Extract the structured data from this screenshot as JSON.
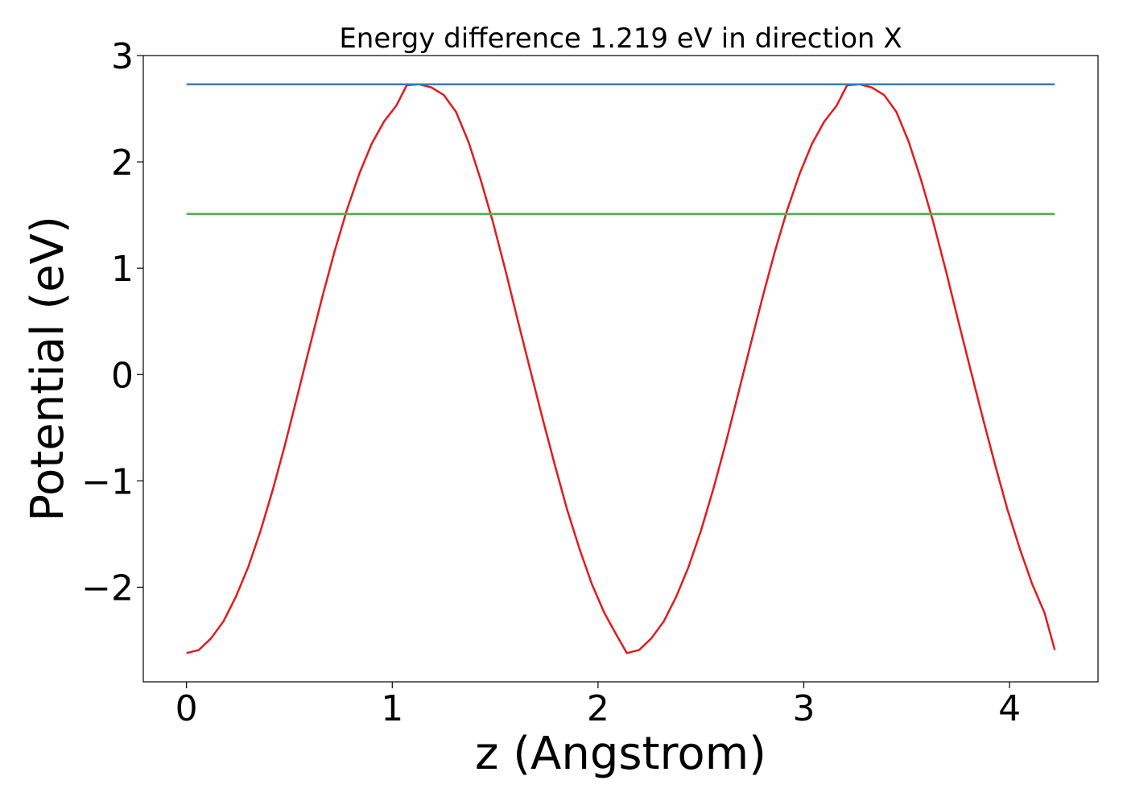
{
  "chart_data": {
    "type": "line",
    "title": "Energy difference 1.219 eV in direction X",
    "xlabel": "z (Angstrom)",
    "ylabel": "Potential (eV)",
    "xlim": [
      -0.21,
      4.43
    ],
    "ylim": [
      -2.89,
      3.0
    ],
    "xticks": [
      0,
      1,
      2,
      3,
      4
    ],
    "xtick_labels": [
      "0",
      "1",
      "2",
      "3",
      "4"
    ],
    "yticks": [
      -2,
      -1,
      0,
      1,
      2,
      3
    ],
    "ytick_labels": [
      "−2",
      "−1",
      "0",
      "1",
      "2",
      "3"
    ],
    "grid": false,
    "legend": "none",
    "colors": {
      "potential": "#e41a1c",
      "max_level": "#377eb8",
      "mean_level": "#4daf4a"
    },
    "series": [
      {
        "key": "potential",
        "x": [
          0.0,
          0.06,
          0.12,
          0.18,
          0.24,
          0.3,
          0.36,
          0.42,
          0.48,
          0.54,
          0.6,
          0.66,
          0.72,
          0.78,
          0.84,
          0.9,
          0.96,
          1.02,
          1.07,
          1.13,
          1.19,
          1.25,
          1.31,
          1.37,
          1.43,
          1.49,
          1.55,
          1.61,
          1.67,
          1.73,
          1.79,
          1.85,
          1.91,
          1.97,
          2.03,
          2.09,
          2.14,
          2.2,
          2.26,
          2.32,
          2.38,
          2.44,
          2.5,
          2.56,
          2.62,
          2.68,
          2.74,
          2.8,
          2.86,
          2.92,
          2.98,
          3.04,
          3.1,
          3.16,
          3.21,
          3.27,
          3.33,
          3.39,
          3.45,
          3.51,
          3.57,
          3.63,
          3.69,
          3.75,
          3.81,
          3.87,
          3.93,
          3.99,
          4.05,
          4.11,
          4.17,
          4.22
        ],
        "y": [
          -2.62,
          -2.59,
          -2.48,
          -2.32,
          -2.09,
          -1.81,
          -1.47,
          -1.08,
          -0.65,
          -0.19,
          0.27,
          0.73,
          1.16,
          1.55,
          1.89,
          2.17,
          2.38,
          2.53,
          2.72,
          2.73,
          2.7,
          2.63,
          2.47,
          2.19,
          1.83,
          1.43,
          0.98,
          0.51,
          0.05,
          -0.41,
          -0.85,
          -1.27,
          -1.64,
          -1.97,
          -2.24,
          -2.45,
          -2.62,
          -2.59,
          -2.48,
          -2.32,
          -2.09,
          -1.81,
          -1.47,
          -1.08,
          -0.65,
          -0.19,
          0.27,
          0.73,
          1.16,
          1.55,
          1.89,
          2.17,
          2.38,
          2.53,
          2.72,
          2.73,
          2.7,
          2.63,
          2.47,
          2.19,
          1.83,
          1.43,
          0.98,
          0.51,
          0.05,
          -0.41,
          -0.85,
          -1.27,
          -1.64,
          -1.97,
          -2.24,
          -2.59
        ]
      },
      {
        "key": "max_level",
        "x": [
          0.0,
          4.22
        ],
        "y": [
          2.73,
          2.73
        ]
      },
      {
        "key": "mean_level",
        "x": [
          0.0,
          4.22
        ],
        "y": [
          1.51,
          1.51
        ]
      }
    ]
  }
}
